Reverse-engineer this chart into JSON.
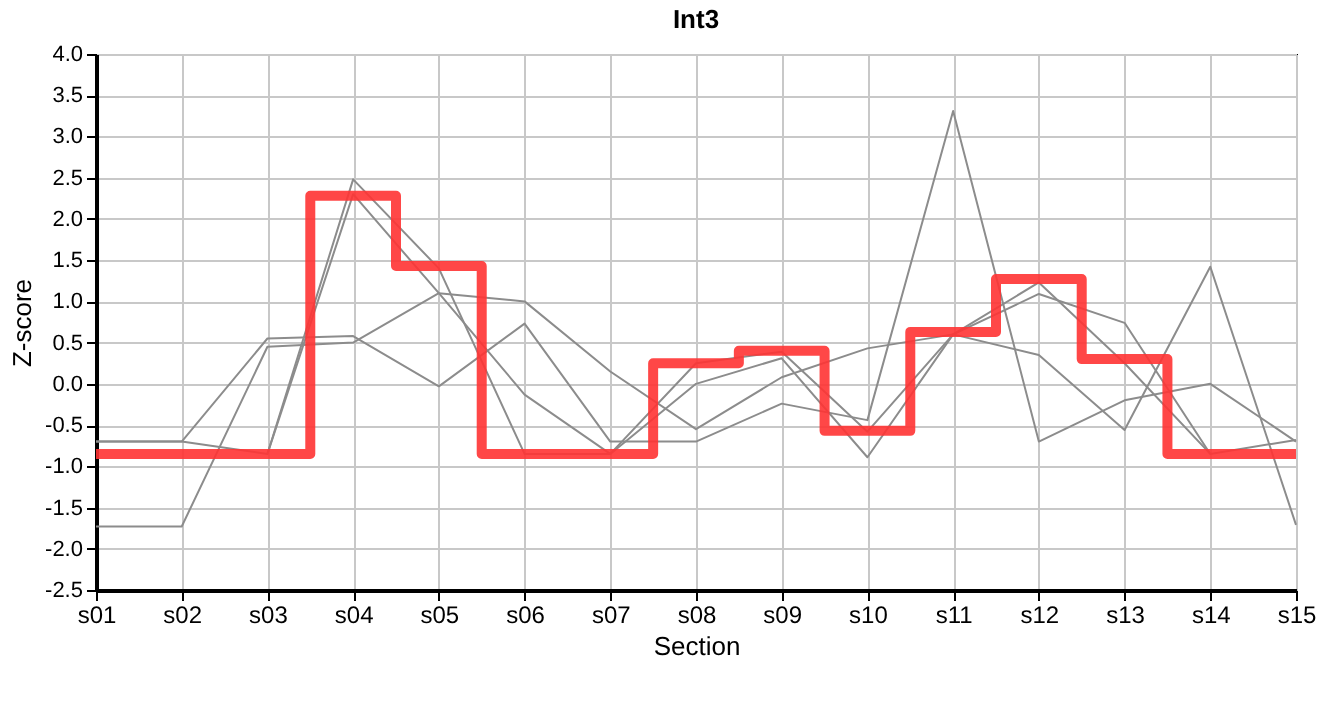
{
  "chart_data": {
    "type": "line",
    "title": "Int3",
    "xlabel": "Section",
    "ylabel": "Z-score",
    "categories": [
      "s01",
      "s02",
      "s03",
      "s04",
      "s05",
      "s06",
      "s07",
      "s08",
      "s09",
      "s10",
      "s11",
      "s12",
      "s13",
      "s14",
      "s15"
    ],
    "ylim": [
      -2.5,
      4.0
    ],
    "yticks": [
      {
        "value": -2.5,
        "label": "-2.5"
      },
      {
        "value": -2,
        "label": "-2.0"
      },
      {
        "value": -1.5,
        "label": "-1.5"
      },
      {
        "value": -1,
        "label": "-1.0"
      },
      {
        "value": -0.5,
        "label": "-0.5"
      },
      {
        "value": 0,
        "label": "0.0"
      },
      {
        "value": 0.5,
        "label": "0.5"
      },
      {
        "value": 1,
        "label": "1.0"
      },
      {
        "value": 1.5,
        "label": "1.5"
      },
      {
        "value": 2,
        "label": "2.0"
      },
      {
        "value": 2.5,
        "label": "2.5"
      },
      {
        "value": 3,
        "label": "3.0"
      },
      {
        "value": 3.5,
        "label": "3.5"
      },
      {
        "value": 4,
        "label": "4.0"
      }
    ],
    "grid": true,
    "series": [
      {
        "color": "#8c8c8c",
        "values": [
          -0.7,
          -0.7,
          0.55,
          0.58,
          -0.03,
          0.73,
          -0.7,
          -0.7,
          -0.24,
          -0.44,
          3.31,
          -0.7,
          -0.2,
          0.0,
          -0.7
        ]
      },
      {
        "color": "#8c8c8c",
        "values": [
          -1.73,
          -1.73,
          0.45,
          0.5,
          1.1,
          1.0,
          0.15,
          -0.55,
          0.08,
          0.43,
          0.6,
          0.35,
          -0.56,
          1.42,
          -1.71
        ]
      },
      {
        "color": "#8c8c8c",
        "values": [
          -0.7,
          -0.7,
          -0.85,
          2.48,
          1.4,
          -0.85,
          -0.85,
          0.25,
          0.39,
          -0.58,
          0.6,
          1.23,
          0.25,
          -0.85,
          null
        ]
      },
      {
        "color": "#8c8c8c",
        "values": [
          null,
          null,
          -0.85,
          2.3,
          1.1,
          -0.13,
          -0.85,
          0.0,
          0.31,
          -0.89,
          0.6,
          1.09,
          0.74,
          -0.85,
          -0.68
        ]
      },
      {
        "type": "step",
        "color": "#ff3333",
        "values": [
          -0.85,
          -0.85,
          -0.85,
          2.28,
          1.43,
          -0.85,
          -0.85,
          0.25,
          0.4,
          -0.57,
          0.63,
          1.27,
          0.3,
          -0.85,
          -0.85
        ]
      }
    ]
  }
}
